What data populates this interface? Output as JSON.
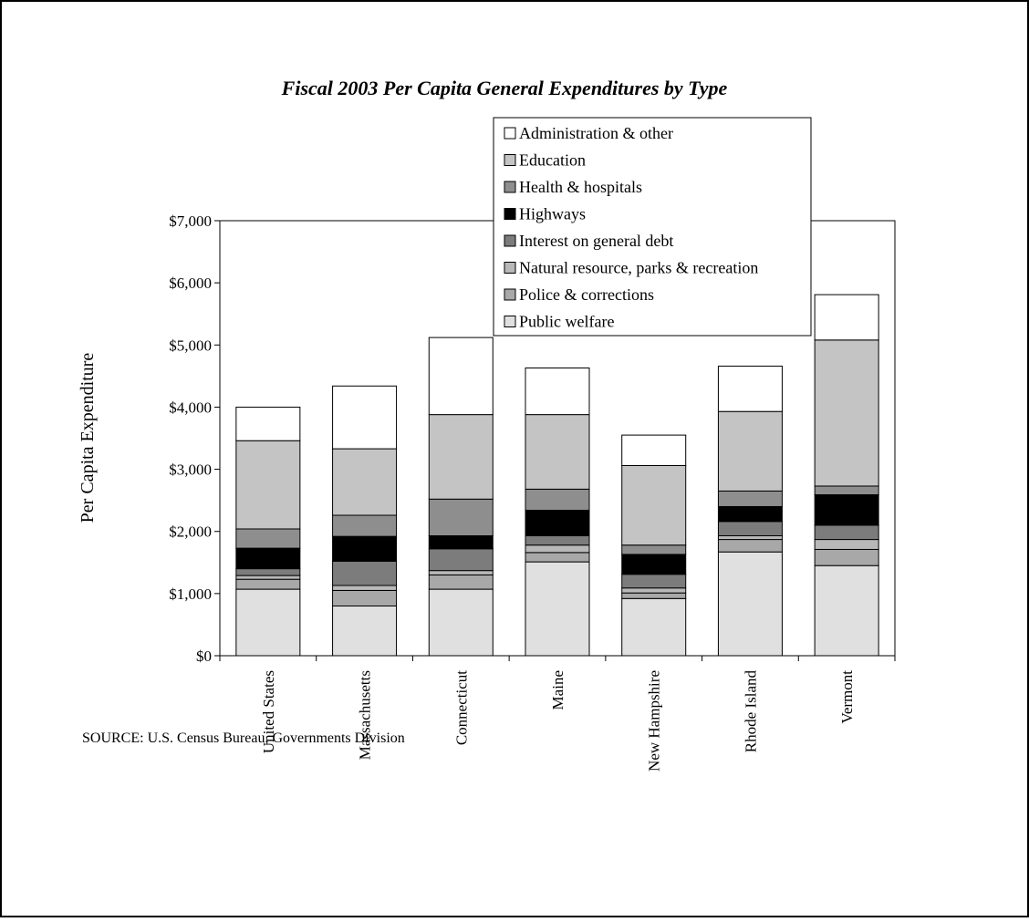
{
  "chart_data": {
    "type": "stacked_bar",
    "title": "Fiscal 2003 Per Capita General Expenditures by Type",
    "y_label": "Per Capita Expenditure",
    "source": "SOURCE:  U.S. Census Bureau, Governments Division",
    "categories": [
      "United States",
      "Massachusetts",
      "Connecticut",
      "Maine",
      "New Hampshire",
      "Rhode Island",
      "Vermont"
    ],
    "ylim": [
      0,
      7000
    ],
    "yticks": [
      {
        "value": 0,
        "label": "$0"
      },
      {
        "value": 1000,
        "label": "$1,000"
      },
      {
        "value": 2000,
        "label": "$2,000"
      },
      {
        "value": 3000,
        "label": "$3,000"
      },
      {
        "value": 4000,
        "label": "$4,000"
      },
      {
        "value": 5000,
        "label": "$5,000"
      },
      {
        "value": 6000,
        "label": "$6,000"
      },
      {
        "value": 7000,
        "label": "$7,000"
      }
    ],
    "grid": false,
    "legend_position": "top-right",
    "series": [
      {
        "name": "Public welfare",
        "color": "#e0e0e0",
        "values": [
          1070,
          800,
          1070,
          1510,
          920,
          1670,
          1450
        ]
      },
      {
        "name": "Police & corrections",
        "color": "#a8a8a8",
        "values": [
          160,
          250,
          230,
          150,
          90,
          200,
          260
        ]
      },
      {
        "name": "Natural resource, parks & recreation",
        "color": "#b8b8b8",
        "values": [
          60,
          80,
          70,
          120,
          80,
          60,
          160
        ]
      },
      {
        "name": "Interest on general debt",
        "color": "#7c7c7c",
        "values": [
          110,
          390,
          350,
          150,
          220,
          230,
          230
        ]
      },
      {
        "name": "Highways",
        "color": "#000000",
        "values": [
          330,
          400,
          210,
          410,
          320,
          240,
          490
        ]
      },
      {
        "name": "Health & hospitals",
        "color": "#8e8e8e",
        "values": [
          310,
          340,
          590,
          340,
          150,
          250,
          140
        ]
      },
      {
        "name": "Education",
        "color": "#c4c4c4",
        "values": [
          1420,
          1070,
          1360,
          1200,
          1280,
          1280,
          2350
        ]
      },
      {
        "name": "Administration & other",
        "color": "#ffffff",
        "values": [
          540,
          1010,
          1240,
          750,
          490,
          730,
          730
        ]
      }
    ]
  }
}
